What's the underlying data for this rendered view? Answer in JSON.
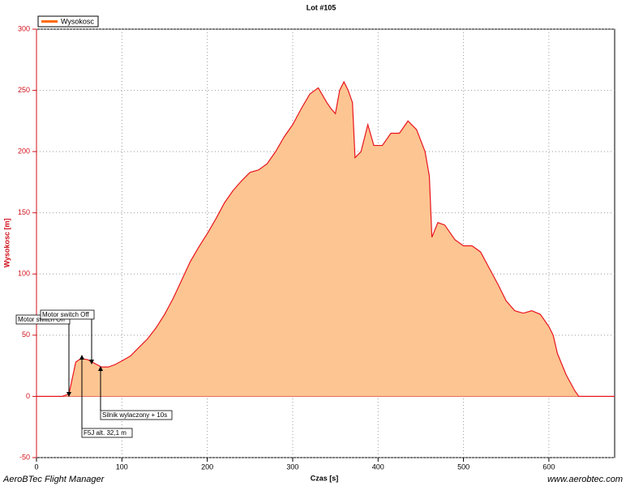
{
  "chart_data": {
    "type": "area",
    "title": "Lot #105",
    "x_label": "Czas [s]",
    "y_label": "Wysokosc [m]",
    "footer_left": "AeroBTec Flight Manager",
    "footer_right": "www.aerobtec.com",
    "annotations": [
      "Motor switch On",
      "Motor switch Off",
      "Silnik wylaczony + 10s",
      "F5J alt. 32,1 m"
    ],
    "x": [
      0,
      30,
      38,
      42,
      46,
      52,
      60,
      68,
      76,
      84,
      92,
      100,
      110,
      120,
      130,
      140,
      150,
      160,
      170,
      180,
      190,
      200,
      210,
      220,
      230,
      240,
      250,
      260,
      270,
      280,
      290,
      300,
      310,
      320,
      330,
      340,
      345,
      350,
      355,
      360,
      365,
      370,
      373,
      380,
      388,
      395,
      405,
      415,
      425,
      435,
      445,
      455,
      460,
      463,
      470,
      478,
      490,
      500,
      510,
      520,
      530,
      540,
      550,
      560,
      570,
      580,
      590,
      600,
      605,
      610,
      620,
      630,
      635,
      677
    ],
    "series": [
      {
        "name": "Wysokosc",
        "color": "#e8141c",
        "fill": "#fcc592",
        "values": [
          0,
          0,
          2,
          15,
          28,
          31,
          30,
          27,
          24,
          24,
          26,
          29,
          33,
          40,
          47,
          56,
          67,
          80,
          95,
          110,
          122,
          133,
          145,
          158,
          168,
          176,
          183,
          185,
          190,
          200,
          212,
          222,
          235,
          247,
          252,
          240,
          235,
          231,
          250,
          257,
          250,
          240,
          195,
          200,
          222,
          205,
          205,
          215,
          215,
          225,
          218,
          200,
          180,
          130,
          142,
          140,
          128,
          123,
          123,
          118,
          105,
          92,
          78,
          70,
          68,
          70,
          67,
          57,
          50,
          35,
          18,
          5,
          0,
          0
        ]
      }
    ],
    "xlim": [
      0,
      677
    ],
    "ylim": [
      -50,
      300
    ],
    "xticks": [
      0,
      100,
      200,
      300,
      400,
      500,
      600
    ],
    "yticks": [
      -50,
      0,
      50,
      100,
      150,
      200,
      250,
      300
    ],
    "grid": true
  }
}
